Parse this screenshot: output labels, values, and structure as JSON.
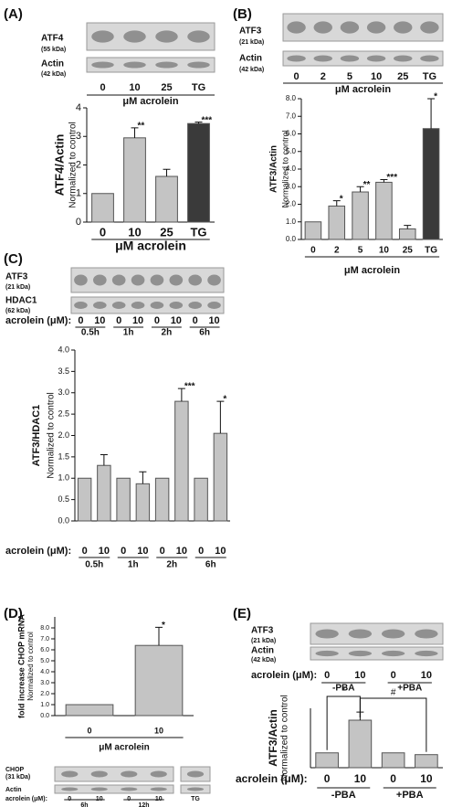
{
  "chart_data": [
    {
      "type": "bar",
      "panel_label": "(A)",
      "blot": {
        "labels": [
          "ATF4",
          "(55 kDa)",
          "Actin",
          "(42 kDa)"
        ],
        "lanes": [
          "0",
          "10",
          "25",
          "TG"
        ],
        "caption": "μM acrolein"
      },
      "ylabel": [
        "ATF4/Actin",
        "Normalized to control"
      ],
      "xlabel": "μM acrolein",
      "categories": [
        "0",
        "10",
        "25",
        "TG"
      ],
      "values": [
        1,
        2.95,
        1.6,
        3.45
      ],
      "errors": [
        null,
        0.35,
        0.25,
        0.05
      ],
      "significance": [
        null,
        "**",
        null,
        "***"
      ],
      "colors": [
        "#c4c4c4",
        "#c4c4c4",
        "#c4c4c4",
        "#3a3a3a"
      ],
      "ylim": [
        0,
        4
      ],
      "yticks": [
        0,
        1,
        2,
        3,
        4
      ]
    },
    {
      "type": "bar",
      "panel_label": "(B)",
      "blot": {
        "labels": [
          "ATF3",
          "(21 kDa)",
          "Actin",
          "(42 kDa)"
        ],
        "lanes": [
          "0",
          "2",
          "5",
          "10",
          "25",
          "TG"
        ],
        "caption": "μM acrolein"
      },
      "ylabel": [
        "ATF3/Actin",
        "Normalized to control"
      ],
      "xlabel": "μM acrolein",
      "categories": [
        "0",
        "2",
        "5",
        "10",
        "25",
        "TG"
      ],
      "values": [
        1,
        1.9,
        2.7,
        3.25,
        0.6,
        6.3
      ],
      "errors": [
        null,
        0.3,
        0.3,
        0.15,
        0.2,
        1.7
      ],
      "significance": [
        null,
        "*",
        "**",
        "***",
        null,
        "*"
      ],
      "colors": [
        "#c4c4c4",
        "#c4c4c4",
        "#c4c4c4",
        "#c4c4c4",
        "#c4c4c4",
        "#3a3a3a"
      ],
      "ylim": [
        0,
        8
      ],
      "yticks": [
        {
          "value": 0,
          "label": "0.0"
        },
        {
          "value": 1,
          "label": "1.0"
        },
        {
          "value": 2,
          "label": "2.0"
        },
        {
          "value": 3,
          "label": "3.0"
        },
        {
          "value": 4,
          "label": "4.0"
        },
        {
          "value": 5,
          "label": "5.0"
        },
        {
          "value": 6,
          "label": "6.0"
        },
        {
          "value": 7,
          "label": "7.0"
        },
        {
          "value": 8,
          "label": "8.0"
        }
      ]
    },
    {
      "type": "bar",
      "panel_label": "(C)",
      "blot": {
        "labels": [
          "ATF3",
          "(21 kDa)",
          "HDAC1",
          "(62 kDa)"
        ],
        "caption": "acrolein (μM):",
        "lanes": [
          "0",
          "10",
          "0",
          "10",
          "0",
          "10",
          "0",
          "10"
        ],
        "groups": [
          "0.5h",
          "1h",
          "2h",
          "6h"
        ]
      },
      "ylabel": [
        "ATF3/HDAC1",
        "Normalized to control"
      ],
      "xlabel": "acrolein (μM):",
      "categories": [
        "0",
        "10",
        "0",
        "10",
        "0",
        "10",
        "0",
        "10"
      ],
      "groups": [
        "0.5h",
        "1h",
        "2h",
        "6h"
      ],
      "values": [
        1,
        1.3,
        1,
        0.87,
        1,
        2.8,
        1,
        2.05
      ],
      "errors": [
        null,
        0.25,
        null,
        0.28,
        null,
        0.3,
        null,
        0.75
      ],
      "significance": [
        null,
        null,
        null,
        null,
        null,
        "***",
        null,
        "*"
      ],
      "colors": [
        "#c4c4c4",
        "#c4c4c4",
        "#c4c4c4",
        "#c4c4c4",
        "#c4c4c4",
        "#c4c4c4",
        "#c4c4c4",
        "#c4c4c4"
      ],
      "ylim": [
        0,
        4
      ],
      "yticks": [
        {
          "value": 0,
          "label": "0.0"
        },
        0.5,
        {
          "value": 1,
          "label": "1.0"
        },
        1.5,
        {
          "value": 2,
          "label": "2.0"
        },
        2.5,
        {
          "value": 3,
          "label": "3.0"
        },
        3.5,
        {
          "value": 4,
          "label": "4.0"
        }
      ]
    },
    {
      "type": "bar",
      "panel_label": "(D)",
      "ylabel": [
        "fold increase CHOP mRNA",
        "Normalized to control"
      ],
      "xlabel": "μM acrolein",
      "categories": [
        "0",
        "10"
      ],
      "values": [
        1,
        6.4
      ],
      "errors": [
        null,
        1.65
      ],
      "significance": [
        null,
        "*"
      ],
      "colors": [
        "#c4c4c4",
        "#c4c4c4"
      ],
      "ylim": [
        0,
        9
      ],
      "yticks": [
        {
          "value": 0,
          "label": "0.0"
        },
        {
          "value": 1,
          "label": "1.0"
        },
        {
          "value": 2,
          "label": "2.0"
        },
        {
          "value": 3,
          "label": "3.0"
        },
        {
          "value": 4,
          "label": "4.0"
        },
        {
          "value": 5,
          "label": "5.0"
        },
        {
          "value": 6,
          "label": "6.0"
        },
        {
          "value": 7,
          "label": "7.0"
        },
        {
          "value": 8,
          "label": "8.0"
        }
      ],
      "blot": {
        "labels": [
          "CHOP",
          "(31 kDa)",
          "Actin"
        ],
        "caption": "acrolein (μM):",
        "lanes": [
          "0",
          "10",
          "0",
          "10",
          "TG"
        ],
        "groups": [
          "6h",
          "12h"
        ]
      }
    },
    {
      "type": "bar",
      "panel_label": "(E)",
      "blot": {
        "labels": [
          "ATF3",
          "(21 kDa)",
          "Actin",
          "(42 kDa)"
        ],
        "caption": "acrolein (μM):",
        "lanes": [
          "0",
          "10",
          "0",
          "10"
        ],
        "groups": [
          "-PBA",
          "+PBA"
        ]
      },
      "ylabel": [
        "ATF3/Actin",
        "Normalized to control"
      ],
      "xlabel": "acrolein (μM):",
      "categories": [
        "0",
        "10",
        "0",
        "10"
      ],
      "groups": [
        "-PBA",
        "+PBA"
      ],
      "values": [
        1,
        3.2,
        1,
        0.88
      ],
      "errors": [
        null,
        0.55,
        null,
        null
      ],
      "bracket_labels": [
        "*",
        "#"
      ],
      "colors": [
        "#c4c4c4",
        "#c4c4c4",
        "#c4c4c4",
        "#c4c4c4"
      ],
      "ylim": [
        0,
        4
      ]
    }
  ]
}
